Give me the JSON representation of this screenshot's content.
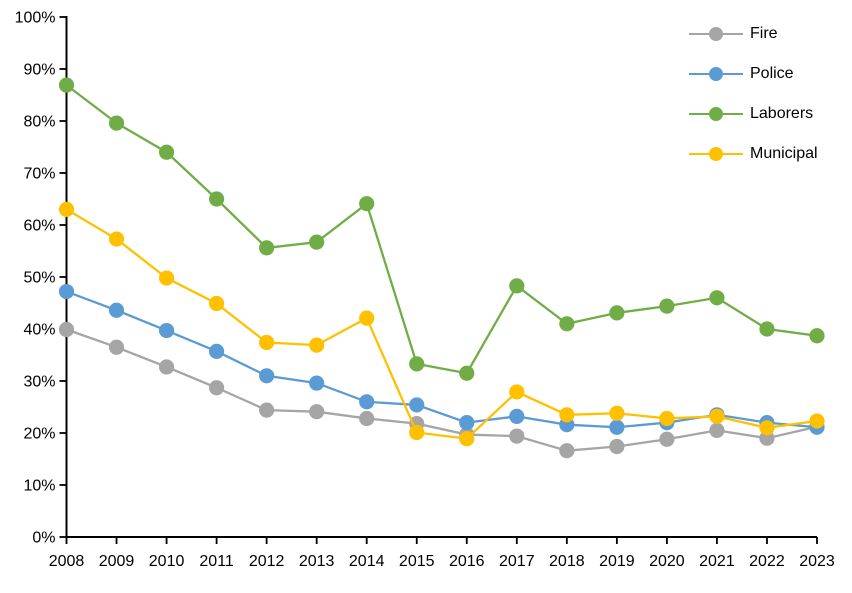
{
  "chart_data": {
    "type": "line",
    "title": "",
    "xlabel": "",
    "ylabel": "",
    "x": [
      "2008",
      "2009",
      "2010",
      "2011",
      "2012",
      "2013",
      "2014",
      "2015",
      "2016",
      "2017",
      "2018",
      "2019",
      "2020",
      "2021",
      "2022",
      "2023"
    ],
    "series": [
      {
        "name": "Fire",
        "color": "#A5A5A5",
        "values": [
          39.9,
          36.5,
          32.7,
          28.7,
          24.4,
          24.1,
          22.8,
          21.8,
          19.7,
          19.4,
          16.6,
          17.4,
          18.8,
          20.5,
          19.0,
          21.2
        ]
      },
      {
        "name": "Police",
        "color": "#5B9BD5",
        "values": [
          47.2,
          43.6,
          39.7,
          35.7,
          31.0,
          29.6,
          26.0,
          25.4,
          22.0,
          23.2,
          21.6,
          21.1,
          22.0,
          23.5,
          22.0,
          21.1
        ]
      },
      {
        "name": "Laborers",
        "color": "#70AD47",
        "values": [
          86.9,
          79.6,
          74.0,
          65.0,
          55.6,
          56.7,
          64.1,
          33.3,
          31.5,
          48.3,
          41.0,
          43.1,
          44.4,
          46.0,
          40.0,
          38.7
        ]
      },
      {
        "name": "Municipal",
        "color": "#FFC000",
        "values": [
          63.0,
          57.3,
          49.8,
          44.9,
          37.4,
          36.9,
          42.1,
          20.1,
          18.9,
          27.9,
          23.5,
          23.8,
          22.8,
          23.2,
          21.0,
          22.3
        ]
      }
    ],
    "ylim": [
      0,
      100
    ],
    "ytick_step": 10,
    "ytick_labels": [
      "0%",
      "10%",
      "20%",
      "30%",
      "40%",
      "50%",
      "60%",
      "70%",
      "80%",
      "90%",
      "100%"
    ],
    "legend_position": "top-right",
    "grid": false,
    "axis_color": "#000000",
    "background": "#FFFFFF"
  }
}
